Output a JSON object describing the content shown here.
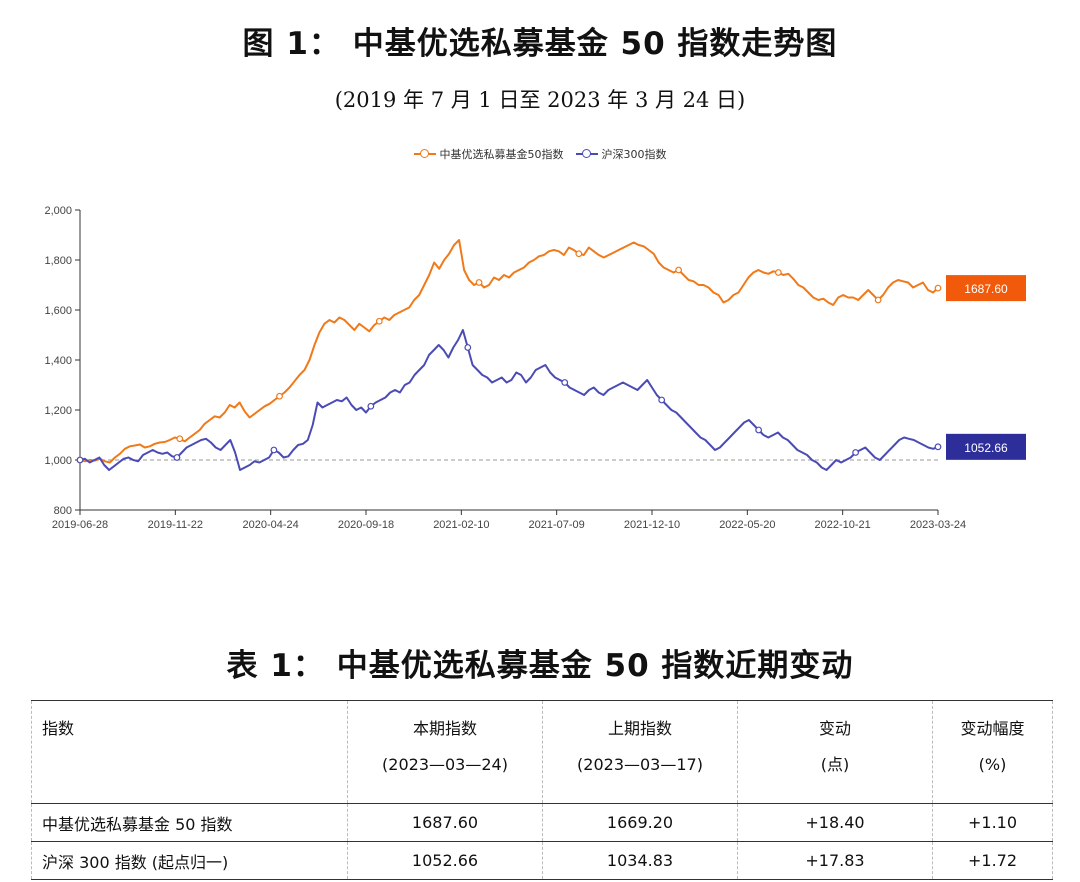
{
  "figure": {
    "title": "图 1： 中基优选私募基金 50 指数走势图",
    "subtitle": "(2019 年 7 月 1 日至 2023 年 3 月 24 日)"
  },
  "colors": {
    "series1": "#f07a1a",
    "series2": "#4b4bb5",
    "label1_bg": "#f05a0a",
    "label2_bg": "#2e2e9a"
  },
  "chart_data": {
    "type": "line",
    "ylim": [
      800,
      2000
    ],
    "yticks": [
      "800",
      "1,000",
      "1,200",
      "1,400",
      "1,600",
      "1,800",
      "2,000"
    ],
    "xticks": [
      "2019-06-28",
      "2019-11-22",
      "2020-04-24",
      "2020-09-18",
      "2021-02-10",
      "2021-07-09",
      "2021-12-10",
      "2022-05-20",
      "2022-10-21",
      "2023-03-24"
    ],
    "baseline": 1000,
    "series": [
      {
        "name": "中基优选私募基金50指数",
        "end_label": "1687.60",
        "values": [
          1000,
          995,
          1000,
          998,
          1005,
          995,
          990,
          1010,
          1025,
          1045,
          1055,
          1058,
          1062,
          1050,
          1055,
          1065,
          1070,
          1072,
          1080,
          1090,
          1085,
          1075,
          1090,
          1105,
          1120,
          1145,
          1160,
          1175,
          1170,
          1190,
          1220,
          1210,
          1230,
          1195,
          1170,
          1185,
          1200,
          1215,
          1225,
          1240,
          1255,
          1270,
          1290,
          1315,
          1340,
          1360,
          1400,
          1460,
          1510,
          1545,
          1560,
          1550,
          1570,
          1560,
          1540,
          1520,
          1545,
          1530,
          1515,
          1540,
          1555,
          1570,
          1560,
          1580,
          1590,
          1600,
          1610,
          1640,
          1660,
          1700,
          1740,
          1790,
          1765,
          1800,
          1825,
          1860,
          1880,
          1760,
          1720,
          1700,
          1710,
          1690,
          1700,
          1730,
          1720,
          1740,
          1730,
          1750,
          1760,
          1770,
          1790,
          1800,
          1815,
          1820,
          1835,
          1840,
          1835,
          1820,
          1850,
          1840,
          1825,
          1820,
          1850,
          1835,
          1820,
          1810,
          1820,
          1830,
          1840,
          1850,
          1860,
          1870,
          1860,
          1855,
          1840,
          1825,
          1790,
          1770,
          1760,
          1750,
          1760,
          1740,
          1720,
          1715,
          1700,
          1700,
          1690,
          1670,
          1660,
          1630,
          1640,
          1660,
          1670,
          1700,
          1730,
          1750,
          1760,
          1750,
          1745,
          1755,
          1750,
          1740,
          1745,
          1725,
          1700,
          1690,
          1670,
          1650,
          1640,
          1645,
          1630,
          1620,
          1650,
          1660,
          1650,
          1650,
          1640,
          1660,
          1680,
          1660,
          1640,
          1660,
          1690,
          1710,
          1720,
          1715,
          1710,
          1690,
          1700,
          1710,
          1680,
          1670,
          1687.6
        ]
      },
      {
        "name": "沪深300指数",
        "end_label": "1052.66",
        "values": [
          1000,
          1005,
          990,
          1000,
          1010,
          980,
          960,
          975,
          990,
          1005,
          1010,
          1000,
          995,
          1020,
          1030,
          1040,
          1030,
          1025,
          1030,
          1015,
          1010,
          1030,
          1050,
          1060,
          1070,
          1080,
          1085,
          1070,
          1050,
          1040,
          1060,
          1080,
          1030,
          960,
          970,
          980,
          995,
          990,
          1000,
          1010,
          1040,
          1030,
          1010,
          1015,
          1040,
          1060,
          1065,
          1080,
          1140,
          1230,
          1210,
          1220,
          1230,
          1240,
          1235,
          1250,
          1220,
          1200,
          1210,
          1190,
          1215,
          1230,
          1240,
          1250,
          1270,
          1280,
          1270,
          1300,
          1310,
          1340,
          1360,
          1380,
          1420,
          1440,
          1460,
          1440,
          1410,
          1450,
          1480,
          1520,
          1450,
          1380,
          1360,
          1340,
          1330,
          1310,
          1320,
          1330,
          1310,
          1320,
          1350,
          1340,
          1310,
          1330,
          1360,
          1370,
          1380,
          1350,
          1330,
          1320,
          1310,
          1290,
          1280,
          1270,
          1260,
          1280,
          1290,
          1270,
          1260,
          1280,
          1290,
          1300,
          1310,
          1300,
          1290,
          1280,
          1300,
          1320,
          1290,
          1260,
          1240,
          1220,
          1200,
          1190,
          1170,
          1150,
          1130,
          1110,
          1090,
          1080,
          1060,
          1040,
          1050,
          1070,
          1090,
          1110,
          1130,
          1150,
          1160,
          1140,
          1120,
          1100,
          1090,
          1100,
          1110,
          1090,
          1080,
          1060,
          1040,
          1030,
          1020,
          1000,
          990,
          970,
          960,
          980,
          1000,
          990,
          1000,
          1010,
          1030,
          1040,
          1050,
          1030,
          1010,
          1000,
          1020,
          1040,
          1060,
          1080,
          1090,
          1085,
          1080,
          1070,
          1060,
          1050,
          1045,
          1052.66
        ]
      }
    ]
  },
  "table": {
    "title": "表 1： 中基优选私募基金 50 指数近期变动",
    "headers": [
      {
        "line1": "指数",
        "line2": ""
      },
      {
        "line1": "本期指数",
        "line2": "(2023—03—24)"
      },
      {
        "line1": "上期指数",
        "line2": "(2023—03—17)"
      },
      {
        "line1": "变动",
        "line2": "(点)"
      },
      {
        "line1": "变动幅度",
        "line2": "(%)"
      }
    ],
    "rows": [
      [
        "中基优选私募基金 50 指数",
        "1687.60",
        "1669.20",
        "+18.40",
        "+1.10"
      ],
      [
        "沪深 300 指数 (起点归一)",
        "1052.66",
        "1034.83",
        "+17.83",
        "+1.72"
      ]
    ]
  }
}
